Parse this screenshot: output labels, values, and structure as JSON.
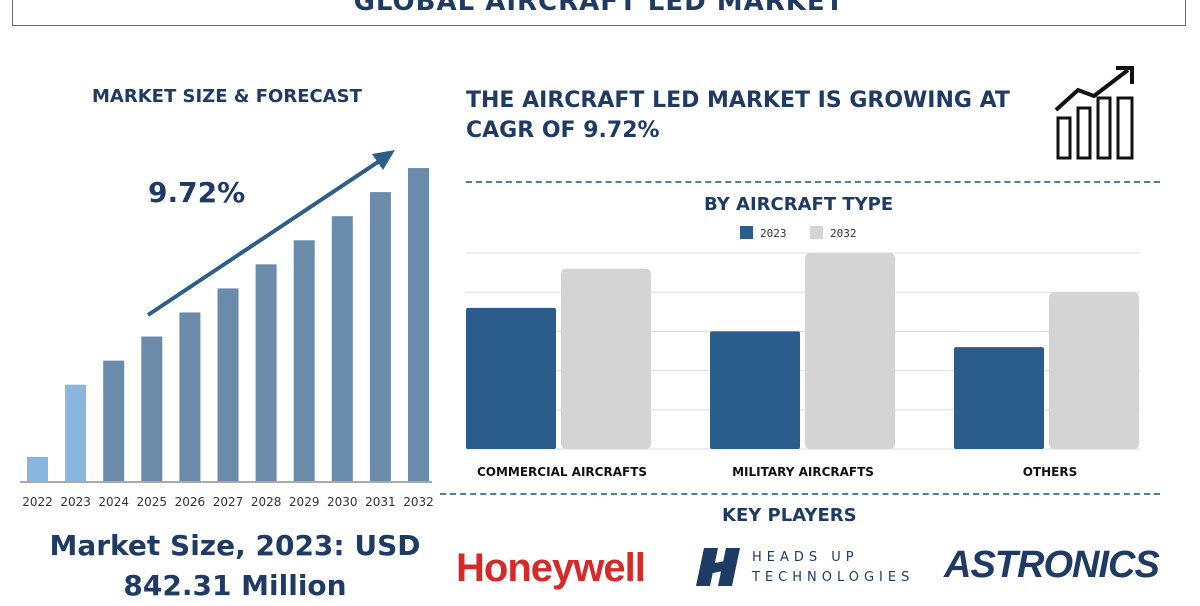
{
  "title": "GLOBAL AIRCRAFT LED MARKET",
  "left_panel": {
    "heading": "MARKET SIZE & FORECAST",
    "cagr_label": "9.72%",
    "market_size_line1": "Market Size, 2023: USD",
    "market_size_line2": "842.31 Million"
  },
  "right_panel": {
    "growth_heading": "THE AIRCRAFT LED MARKET IS GROWING AT CAGR OF 9.72%",
    "growth_icon": "bar-chart-growth-icon",
    "type_heading": "BY AIRCRAFT TYPE",
    "players_heading": "KEY PLAYERS",
    "players": {
      "honeywell": "Honeywell",
      "headsup_line1": "HEADS UP",
      "headsup_line2": "TECHNOLOGIES",
      "astronics": "ASTRONICS"
    }
  },
  "colors": {
    "navy": "#1f3b63",
    "forecast_bar": "#6b8bab",
    "highlight_bar": "#8ab6de",
    "series_2023": "#2a5c8c",
    "series_2032": "#d4d4d4",
    "honeywell_red": "#d42a2a"
  },
  "chart_data": [
    {
      "type": "bar",
      "categories": [
        "2022",
        "2023",
        "2024",
        "2025",
        "2026",
        "2027",
        "2028",
        "2029",
        "2030",
        "2031",
        "2032"
      ],
      "values": [
        0.075,
        0.3,
        0.375,
        0.45,
        0.525,
        0.6,
        0.675,
        0.75,
        0.825,
        0.9,
        0.975
      ],
      "highlight": [
        "2022",
        "2023"
      ],
      "ylim": [
        0,
        1
      ],
      "grid": false,
      "annotation": "9.72%"
    },
    {
      "type": "bar",
      "categories": [
        "COMMERCIAL AIRCRAFTS",
        "MILITARY AIRCRAFTS",
        "OTHERS"
      ],
      "series": [
        {
          "name": "2023",
          "values": [
            36,
            30,
            26
          ]
        },
        {
          "name": "2032",
          "values": [
            46,
            50,
            40
          ]
        }
      ],
      "ylim": [
        0,
        50
      ],
      "grid": true,
      "legend": "top-center"
    }
  ]
}
